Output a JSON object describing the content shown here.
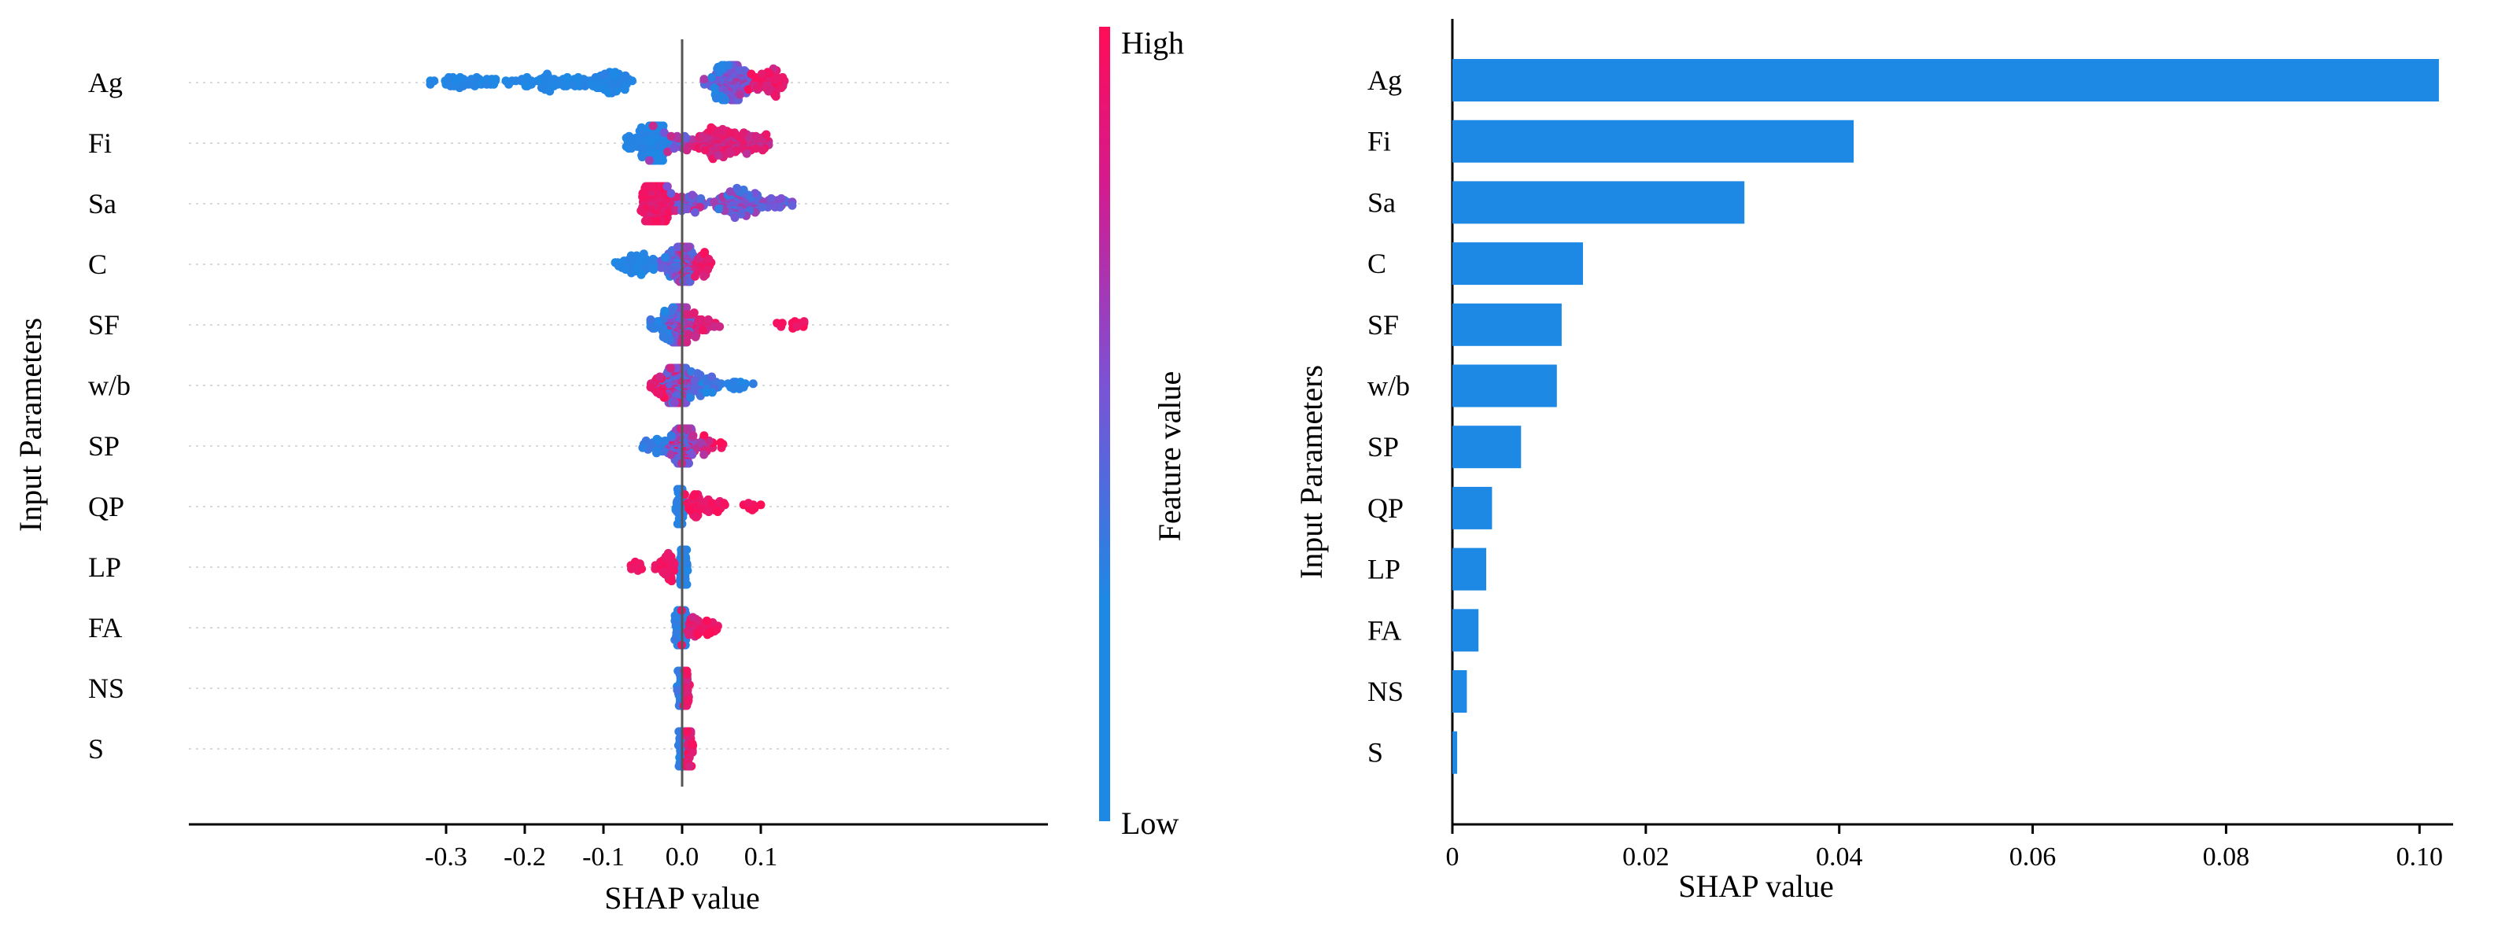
{
  "colors": {
    "low": "#1e88e5",
    "high": "#ff0d57",
    "mid": "#7b52d6",
    "bar": "#1e88e5",
    "axis": "#000000",
    "zero_line": "#555555"
  },
  "chart_data": [
    {
      "type": "scatter",
      "subtype": "shap-beeswarm",
      "features": [
        "Ag",
        "Fi",
        "Sa",
        "C",
        "SF",
        "w/b",
        "SP",
        "QP",
        "LP",
        "FA",
        "NS",
        "S"
      ],
      "xlabel": "SHAP value",
      "ylabel": "Input Parameters",
      "xlim": [
        -0.32,
        0.22
      ],
      "xticks": [
        -0.3,
        -0.2,
        -0.1,
        0.0,
        0.1
      ],
      "xtick_labels": [
        "-0.3",
        "-0.2",
        "-0.1",
        "0.0",
        "0.1"
      ],
      "grid": "horizontal dotted",
      "colorbar": {
        "title": "Feature value",
        "high_label": "High",
        "low_label": "Low"
      },
      "feature_ranges": [
        {
          "feature": "Ag",
          "min": -0.32,
          "max": 0.13
        },
        {
          "feature": "Fi",
          "min": -0.075,
          "max": 0.11
        },
        {
          "feature": "Sa",
          "min": -0.06,
          "max": 0.14
        },
        {
          "feature": "C",
          "min": -0.085,
          "max": 0.04
        },
        {
          "feature": "SF",
          "min": -0.04,
          "max": 0.155
        },
        {
          "feature": "w/b",
          "min": -0.04,
          "max": 0.1
        },
        {
          "feature": "SP",
          "min": -0.055,
          "max": 0.055
        },
        {
          "feature": "QP",
          "min": -0.008,
          "max": 0.1
        },
        {
          "feature": "LP",
          "min": -0.065,
          "max": 0.008
        },
        {
          "feature": "FA",
          "min": -0.018,
          "max": 0.048
        },
        {
          "feature": "NS",
          "min": -0.012,
          "max": 0.012
        },
        {
          "feature": "S",
          "min": -0.006,
          "max": 0.015
        }
      ]
    },
    {
      "type": "bar",
      "orientation": "horizontal",
      "categories": [
        "Ag",
        "Fi",
        "Sa",
        "C",
        "SF",
        "w/b",
        "SP",
        "QP",
        "LP",
        "FA",
        "NS",
        "S"
      ],
      "values": [
        0.102,
        0.0415,
        0.0302,
        0.0135,
        0.0113,
        0.0108,
        0.0071,
        0.0041,
        0.0035,
        0.0027,
        0.0015,
        0.0005
      ],
      "xlabel": "SHAP value",
      "ylabel": "Input Parameters",
      "xlim": [
        0,
        0.1025
      ],
      "xticks": [
        0,
        0.02,
        0.04,
        0.06,
        0.08,
        0.1
      ],
      "xtick_labels": [
        "0",
        "0.02",
        "0.04",
        "0.06",
        "0.08",
        "0.10"
      ],
      "grid": "off",
      "legend": "none"
    }
  ]
}
